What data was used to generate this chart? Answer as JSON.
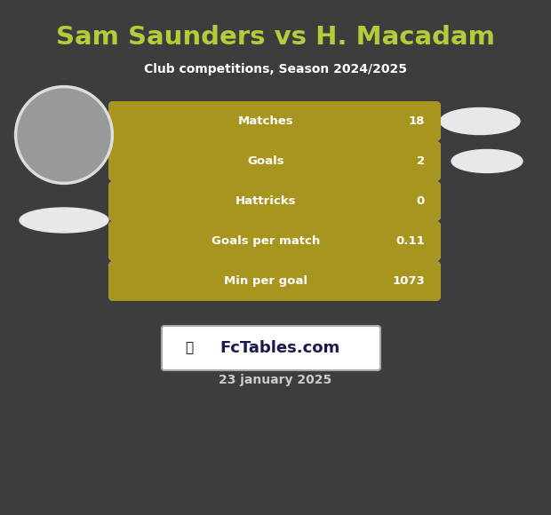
{
  "title": "Sam Saunders vs H. Macadam",
  "subtitle": "Club competitions, Season 2024/2025",
  "date": "23 january 2025",
  "background_color": "#3d3d3d",
  "title_color": "#b5cc3a",
  "subtitle_color": "#ffffff",
  "date_color": "#cccccc",
  "rows": [
    {
      "label": "Matches",
      "value": "18"
    },
    {
      "label": "Goals",
      "value": "2"
    },
    {
      "label": "Hattricks",
      "value": "0"
    },
    {
      "label": "Goals per match",
      "value": "0.11"
    },
    {
      "label": "Min per goal",
      "value": "1073"
    }
  ],
  "bar_left_color": "#a89520",
  "bar_right_color": "#add8e6",
  "bar_text_color": "#ffffff",
  "ellipse_color": "#e8e8e8",
  "logo_bg": "#ffffff",
  "logo_text_color": "#1a1a4e",
  "logo_border": "#aaaaaa"
}
